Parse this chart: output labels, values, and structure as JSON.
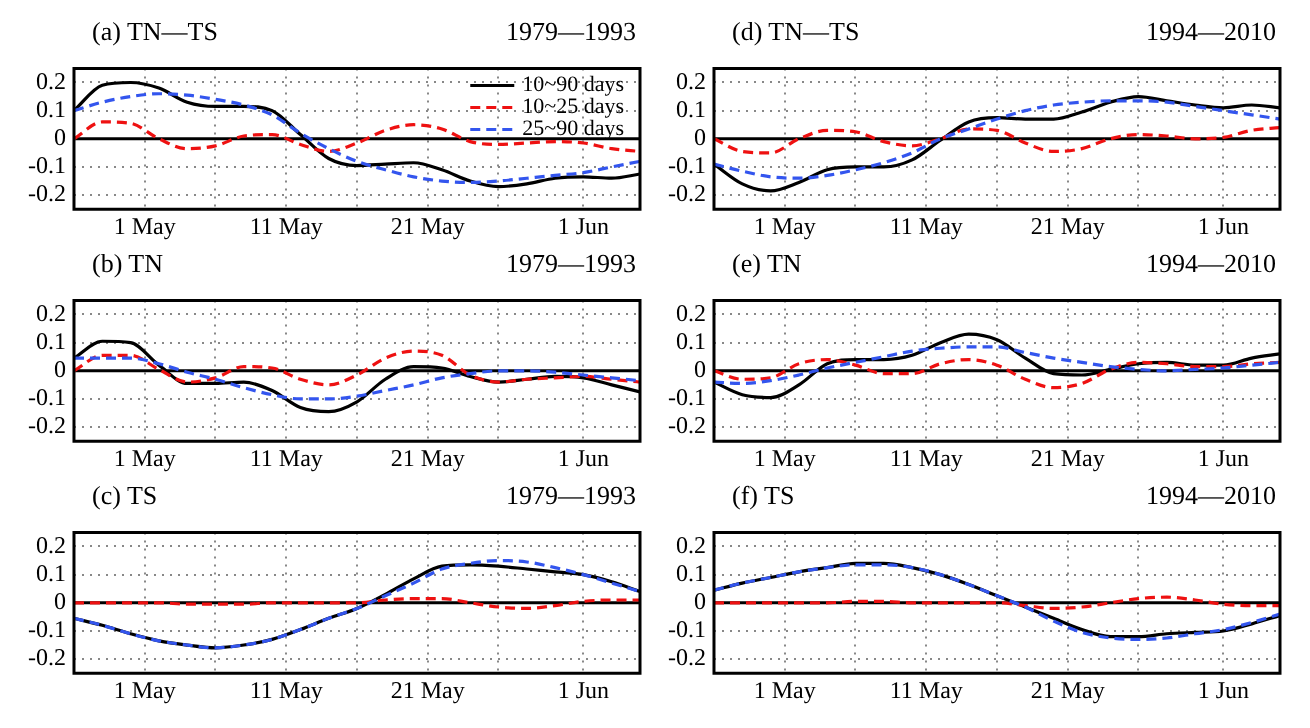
{
  "chart_data": [
    {
      "type": "line",
      "title": "(a) TN—TS",
      "subtitle": "1979—1993",
      "legend": "top right",
      "grid": true,
      "x": [
        "--04-26",
        "--04-28",
        "--04-30",
        "--05-02",
        "--05-04",
        "--05-06",
        "--05-08",
        "--05-10",
        "--05-12",
        "--05-14",
        "--05-16",
        "--05-18",
        "--05-20",
        "--05-22",
        "--05-24",
        "--05-26",
        "--05-28",
        "--05-30",
        "--06-01",
        "--06-03",
        "--06-05"
      ],
      "xlim": [
        "--04-26",
        "--06-05"
      ],
      "xticks": [
        {
          "value": "--05-01",
          "label": "1 May"
        },
        {
          "value": "--05-06",
          "label": null
        },
        {
          "value": "--05-11",
          "label": "11 May"
        },
        {
          "value": "--05-16",
          "label": null
        },
        {
          "value": "--05-21",
          "label": "21 May"
        },
        {
          "value": "--05-26",
          "label": null
        },
        {
          "value": "--06-01",
          "label": "1 Jun"
        }
      ],
      "ylim": [
        -0.25,
        0.25
      ],
      "yticks": [
        -0.2,
        -0.1,
        0,
        0.1,
        0.2
      ],
      "ref_lines": [
        {
          "axis": "y",
          "value": 0,
          "color": "#000000"
        }
      ],
      "series": [
        {
          "name": "10~90 days",
          "color": "#000000",
          "line_style": "solid",
          "values": [
            0.1,
            0.19,
            0.2,
            0.18,
            0.13,
            0.115,
            0.115,
            0.1,
            0.015,
            -0.07,
            -0.095,
            -0.09,
            -0.085,
            -0.11,
            -0.15,
            -0.17,
            -0.16,
            -0.14,
            -0.135,
            -0.14,
            -0.125
          ]
        },
        {
          "name": "10~25 days",
          "color": "#ee1111",
          "line_style": "dashed",
          "values": [
            0,
            0.06,
            0.055,
            0,
            -0.035,
            -0.025,
            0.01,
            0.015,
            -0.02,
            -0.045,
            -0.015,
            0.03,
            0.05,
            0.035,
            -0.01,
            -0.02,
            -0.015,
            -0.01,
            -0.015,
            -0.035,
            -0.045
          ]
        },
        {
          "name": "25~90 days",
          "color": "#3355ee",
          "line_style": "dashed",
          "values": [
            0.1,
            0.13,
            0.15,
            0.16,
            0.155,
            0.14,
            0.12,
            0.085,
            0.02,
            -0.035,
            -0.08,
            -0.11,
            -0.135,
            -0.15,
            -0.155,
            -0.15,
            -0.14,
            -0.13,
            -0.12,
            -0.1,
            -0.08
          ]
        }
      ]
    },
    {
      "type": "line",
      "title": "(d) TN—TS",
      "subtitle": "1994—2010",
      "grid": true,
      "x": [
        "--04-26",
        "--04-28",
        "--04-30",
        "--05-02",
        "--05-04",
        "--05-06",
        "--05-08",
        "--05-10",
        "--05-12",
        "--05-14",
        "--05-16",
        "--05-18",
        "--05-20",
        "--05-22",
        "--05-24",
        "--05-26",
        "--05-28",
        "--05-30",
        "--06-01",
        "--06-03",
        "--06-05"
      ],
      "xlim": [
        "--04-26",
        "--06-05"
      ],
      "xticks": [
        {
          "value": "--05-01",
          "label": "1 May"
        },
        {
          "value": "--05-06",
          "label": null
        },
        {
          "value": "--05-11",
          "label": "11 May"
        },
        {
          "value": "--05-16",
          "label": null
        },
        {
          "value": "--05-21",
          "label": "21 May"
        },
        {
          "value": "--05-26",
          "label": null
        },
        {
          "value": "--06-01",
          "label": "1 Jun"
        }
      ],
      "ylim": [
        -0.25,
        0.25
      ],
      "yticks": [
        -0.2,
        -0.1,
        0,
        0.1,
        0.2
      ],
      "ref_lines": [
        {
          "axis": "y",
          "value": 0,
          "color": "#000000"
        }
      ],
      "series": [
        {
          "color": "#000000",
          "line_style": "solid",
          "values": [
            -0.09,
            -0.16,
            -0.185,
            -0.155,
            -0.11,
            -0.1,
            -0.1,
            -0.075,
            -0.005,
            0.06,
            0.075,
            0.07,
            0.07,
            0.095,
            0.13,
            0.15,
            0.135,
            0.12,
            0.11,
            0.12,
            0.11
          ]
        },
        {
          "color": "#ee1111",
          "line_style": "dashed",
          "values": [
            0,
            -0.045,
            -0.05,
            0,
            0.03,
            0.025,
            -0.01,
            -0.025,
            0,
            0.035,
            0.03,
            -0.015,
            -0.045,
            -0.035,
            0,
            0.015,
            0.01,
            0,
            0.005,
            0.03,
            0.04
          ]
        },
        {
          "color": "#3355ee",
          "line_style": "dashed",
          "values": [
            -0.09,
            -0.115,
            -0.135,
            -0.14,
            -0.13,
            -0.11,
            -0.085,
            -0.05,
            0,
            0.035,
            0.07,
            0.1,
            0.12,
            0.13,
            0.135,
            0.135,
            0.13,
            0.115,
            0.1,
            0.085,
            0.07
          ]
        }
      ]
    },
    {
      "type": "line",
      "title": "(b) TN",
      "subtitle": "1979—1993",
      "grid": true,
      "x": [
        "--04-26",
        "--04-28",
        "--04-30",
        "--05-02",
        "--05-04",
        "--05-06",
        "--05-08",
        "--05-10",
        "--05-12",
        "--05-14",
        "--05-16",
        "--05-18",
        "--05-20",
        "--05-22",
        "--05-24",
        "--05-26",
        "--05-28",
        "--05-30",
        "--06-01",
        "--06-03",
        "--06-05"
      ],
      "xlim": [
        "--04-26",
        "--06-05"
      ],
      "xticks": [
        {
          "value": "--05-01",
          "label": "1 May"
        },
        {
          "value": "--05-06",
          "label": null
        },
        {
          "value": "--05-11",
          "label": "11 May"
        },
        {
          "value": "--05-16",
          "label": null
        },
        {
          "value": "--05-21",
          "label": "21 May"
        },
        {
          "value": "--05-26",
          "label": null
        },
        {
          "value": "--06-01",
          "label": "1 Jun"
        }
      ],
      "ylim": [
        -0.25,
        0.25
      ],
      "yticks": [
        -0.2,
        -0.1,
        0,
        0.1,
        0.2
      ],
      "ref_lines": [
        {
          "axis": "y",
          "value": 0,
          "color": "#000000"
        }
      ],
      "series": [
        {
          "color": "#000000",
          "line_style": "solid",
          "values": [
            0.045,
            0.105,
            0.1,
            0.02,
            -0.045,
            -0.045,
            -0.04,
            -0.07,
            -0.13,
            -0.145,
            -0.11,
            -0.03,
            0.015,
            0.01,
            -0.02,
            -0.04,
            -0.03,
            -0.02,
            -0.025,
            -0.05,
            -0.075
          ]
        },
        {
          "color": "#ee1111",
          "line_style": "dashed",
          "values": [
            0,
            0.055,
            0.055,
            0.005,
            -0.04,
            -0.025,
            0.015,
            0.01,
            -0.03,
            -0.05,
            -0.015,
            0.045,
            0.07,
            0.055,
            -0.015,
            -0.04,
            -0.03,
            -0.025,
            -0.02,
            -0.03,
            -0.04
          ]
        },
        {
          "color": "#3355ee",
          "line_style": "dashed",
          "values": [
            0.045,
            0.045,
            0.045,
            0.025,
            -0.005,
            -0.03,
            -0.06,
            -0.085,
            -0.1,
            -0.1,
            -0.09,
            -0.07,
            -0.05,
            -0.025,
            -0.01,
            0,
            0,
            -0.005,
            -0.015,
            -0.025,
            -0.035
          ]
        }
      ]
    },
    {
      "type": "line",
      "title": "(e) TN",
      "subtitle": "1994—2010",
      "grid": true,
      "x": [
        "--04-26",
        "--04-28",
        "--04-30",
        "--05-02",
        "--05-04",
        "--05-06",
        "--05-08",
        "--05-10",
        "--05-12",
        "--05-14",
        "--05-16",
        "--05-18",
        "--05-20",
        "--05-22",
        "--05-24",
        "--05-26",
        "--05-28",
        "--05-30",
        "--06-01",
        "--06-03",
        "--06-05"
      ],
      "xlim": [
        "--04-26",
        "--06-05"
      ],
      "xticks": [
        {
          "value": "--05-01",
          "label": "1 May"
        },
        {
          "value": "--05-06",
          "label": null
        },
        {
          "value": "--05-11",
          "label": "11 May"
        },
        {
          "value": "--05-16",
          "label": null
        },
        {
          "value": "--05-21",
          "label": "21 May"
        },
        {
          "value": "--05-26",
          "label": null
        },
        {
          "value": "--06-01",
          "label": "1 Jun"
        }
      ],
      "ylim": [
        -0.25,
        0.25
      ],
      "yticks": [
        -0.2,
        -0.1,
        0,
        0.1,
        0.2
      ],
      "ref_lines": [
        {
          "axis": "y",
          "value": 0,
          "color": "#000000"
        }
      ],
      "series": [
        {
          "color": "#000000",
          "line_style": "solid",
          "values": [
            -0.04,
            -0.085,
            -0.095,
            -0.05,
            0.025,
            0.04,
            0.04,
            0.055,
            0.1,
            0.13,
            0.11,
            0.045,
            -0.01,
            -0.015,
            0.005,
            0.025,
            0.03,
            0.02,
            0.02,
            0.045,
            0.06
          ]
        },
        {
          "color": "#ee1111",
          "line_style": "dashed",
          "values": [
            0,
            -0.03,
            -0.025,
            0.025,
            0.04,
            0.02,
            -0.01,
            -0.01,
            0.025,
            0.04,
            0.02,
            -0.03,
            -0.06,
            -0.045,
            0.005,
            0.03,
            0.025,
            0.015,
            0.015,
            0.025,
            0.03
          ]
        },
        {
          "color": "#3355ee",
          "line_style": "dashed",
          "values": [
            -0.04,
            -0.045,
            -0.035,
            -0.015,
            0.01,
            0.03,
            0.05,
            0.07,
            0.08,
            0.085,
            0.085,
            0.065,
            0.045,
            0.03,
            0.015,
            0.005,
            0,
            0.005,
            0.01,
            0.02,
            0.03
          ]
        }
      ]
    },
    {
      "type": "line",
      "title": "(c) TS",
      "subtitle": "1979—1993",
      "grid": true,
      "x": [
        "--04-26",
        "--04-28",
        "--04-30",
        "--05-02",
        "--05-04",
        "--05-06",
        "--05-08",
        "--05-10",
        "--05-12",
        "--05-14",
        "--05-16",
        "--05-18",
        "--05-20",
        "--05-22",
        "--05-24",
        "--05-26",
        "--05-28",
        "--05-30",
        "--06-01",
        "--06-03",
        "--06-05"
      ],
      "xlim": [
        "--04-26",
        "--06-05"
      ],
      "xticks": [
        {
          "value": "--05-01",
          "label": "1 May"
        },
        {
          "value": "--05-06",
          "label": null
        },
        {
          "value": "--05-11",
          "label": "11 May"
        },
        {
          "value": "--05-16",
          "label": null
        },
        {
          "value": "--05-21",
          "label": "21 May"
        },
        {
          "value": "--05-26",
          "label": null
        },
        {
          "value": "--06-01",
          "label": "1 Jun"
        }
      ],
      "ylim": [
        -0.25,
        0.25
      ],
      "yticks": [
        -0.2,
        -0.1,
        0,
        0.1,
        0.2
      ],
      "ref_lines": [
        {
          "axis": "y",
          "value": 0,
          "color": "#000000"
        }
      ],
      "series": [
        {
          "color": "#000000",
          "line_style": "solid",
          "values": [
            -0.055,
            -0.08,
            -0.11,
            -0.135,
            -0.15,
            -0.16,
            -0.15,
            -0.13,
            -0.095,
            -0.055,
            -0.02,
            0.03,
            0.085,
            0.13,
            0.135,
            0.13,
            0.12,
            0.11,
            0.1,
            0.075,
            0.04
          ]
        },
        {
          "color": "#ee1111",
          "line_style": "dashed",
          "values": [
            0,
            0,
            0,
            0,
            -0.005,
            -0.005,
            -0.005,
            0,
            0,
            0,
            0,
            0.01,
            0.015,
            0.015,
            0,
            -0.015,
            -0.02,
            -0.01,
            0.005,
            0.01,
            0.01
          ]
        },
        {
          "color": "#3355ee",
          "line_style": "dashed",
          "values": [
            -0.055,
            -0.08,
            -0.11,
            -0.135,
            -0.15,
            -0.16,
            -0.15,
            -0.13,
            -0.095,
            -0.055,
            -0.02,
            0.025,
            0.07,
            0.12,
            0.14,
            0.15,
            0.145,
            0.125,
            0.1,
            0.07,
            0.04
          ]
        }
      ]
    },
    {
      "type": "line",
      "title": "(f) TS",
      "subtitle": "1994—2010",
      "grid": true,
      "x": [
        "--04-26",
        "--04-28",
        "--04-30",
        "--05-02",
        "--05-04",
        "--05-06",
        "--05-08",
        "--05-10",
        "--05-12",
        "--05-14",
        "--05-16",
        "--05-18",
        "--05-20",
        "--05-22",
        "--05-24",
        "--05-26",
        "--05-28",
        "--05-30",
        "--06-01",
        "--06-03",
        "--06-05"
      ],
      "xlim": [
        "--04-26",
        "--06-05"
      ],
      "xticks": [
        {
          "value": "--05-01",
          "label": "1 May"
        },
        {
          "value": "--05-06",
          "label": null
        },
        {
          "value": "--05-11",
          "label": "11 May"
        },
        {
          "value": "--05-16",
          "label": null
        },
        {
          "value": "--05-21",
          "label": "21 May"
        },
        {
          "value": "--05-26",
          "label": null
        },
        {
          "value": "--06-01",
          "label": "1 Jun"
        }
      ],
      "ylim": [
        -0.25,
        0.25
      ],
      "yticks": [
        -0.2,
        -0.1,
        0,
        0.1,
        0.2
      ],
      "ref_lines": [
        {
          "axis": "y",
          "value": 0,
          "color": "#000000"
        }
      ],
      "series": [
        {
          "color": "#000000",
          "line_style": "solid",
          "values": [
            0.045,
            0.07,
            0.09,
            0.11,
            0.125,
            0.14,
            0.14,
            0.125,
            0.1,
            0.065,
            0.025,
            -0.015,
            -0.055,
            -0.095,
            -0.12,
            -0.12,
            -0.11,
            -0.105,
            -0.1,
            -0.075,
            -0.045
          ]
        },
        {
          "color": "#ee1111",
          "line_style": "dashed",
          "values": [
            0,
            0,
            0,
            0,
            0,
            0.005,
            0.005,
            0,
            0,
            0,
            0,
            -0.01,
            -0.02,
            -0.015,
            0,
            0.015,
            0.02,
            0.01,
            -0.005,
            -0.01,
            -0.01
          ]
        },
        {
          "color": "#3355ee",
          "line_style": "dashed",
          "values": [
            0.045,
            0.07,
            0.09,
            0.11,
            0.125,
            0.135,
            0.135,
            0.125,
            0.1,
            0.065,
            0.025,
            -0.015,
            -0.065,
            -0.105,
            -0.125,
            -0.13,
            -0.125,
            -0.11,
            -0.095,
            -0.07,
            -0.04
          ]
        }
      ]
    }
  ]
}
